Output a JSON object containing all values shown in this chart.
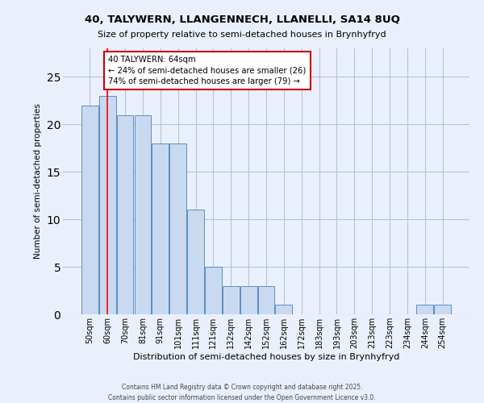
{
  "title1": "40, TALYWERN, LLANGENNECH, LLANELLI, SA14 8UQ",
  "title2": "Size of property relative to semi-detached houses in Brynhyfryd",
  "xlabel": "Distribution of semi-detached houses by size in Brynhyfryd",
  "ylabel": "Number of semi-detached properties",
  "categories": [
    "50sqm",
    "60sqm",
    "70sqm",
    "81sqm",
    "91sqm",
    "101sqm",
    "111sqm",
    "121sqm",
    "132sqm",
    "142sqm",
    "152sqm",
    "162sqm",
    "172sqm",
    "183sqm",
    "193sqm",
    "203sqm",
    "213sqm",
    "223sqm",
    "234sqm",
    "244sqm",
    "254sqm"
  ],
  "values": [
    22,
    23,
    21,
    21,
    18,
    18,
    11,
    5,
    3,
    3,
    3,
    1,
    0,
    0,
    0,
    0,
    0,
    0,
    0,
    1,
    1
  ],
  "bar_color": "#c9d9f0",
  "bar_edge_color": "#5a8fc2",
  "grid_color": "#b0c4de",
  "bg_color": "#eaf0fb",
  "red_line_x": 1,
  "annotation_text": "40 TALYWERN: 64sqm\n← 24% of semi-detached houses are smaller (26)\n74% of semi-detached houses are larger (79) →",
  "annot_box_color": "#ffffff",
  "annot_box_edge": "#cc0000",
  "ylim": [
    0,
    28
  ],
  "yticks": [
    0,
    5,
    10,
    15,
    20,
    25
  ],
  "footer": "Contains HM Land Registry data © Crown copyright and database right 2025.\nContains public sector information licensed under the Open Government Licence v3.0."
}
